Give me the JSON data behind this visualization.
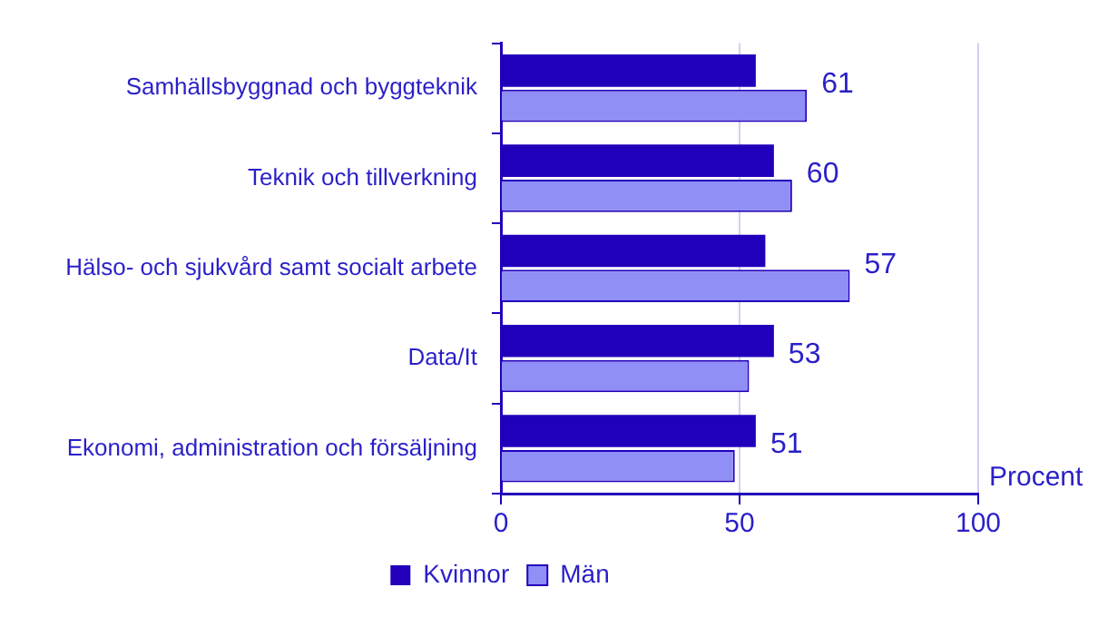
{
  "chart_data": {
    "type": "bar",
    "orientation": "horizontal",
    "xlabel": "Procent",
    "categories": [
      "Samhällsbyggnad och byggteknik",
      "Teknik och tillverkning",
      "Hälso- och sjukvård samt socialt arbete",
      "Data/It",
      "Ekonomi, administration och försäljning"
    ],
    "series": [
      {
        "name": "Kvinnor",
        "color": "#2200bb",
        "values": [
          53.4,
          57.2,
          55.4,
          57.2,
          53.4
        ]
      },
      {
        "name": "Män",
        "color": "#8f8ff5",
        "values": [
          64.1,
          61.0,
          73.1,
          52.0,
          49.0
        ]
      }
    ],
    "annotations": [
      "61",
      "60",
      "57",
      "53",
      "51"
    ],
    "xlim": [
      0,
      100
    ],
    "xticks": [
      0,
      50,
      100
    ],
    "grid": "x",
    "legend": "bottom"
  }
}
